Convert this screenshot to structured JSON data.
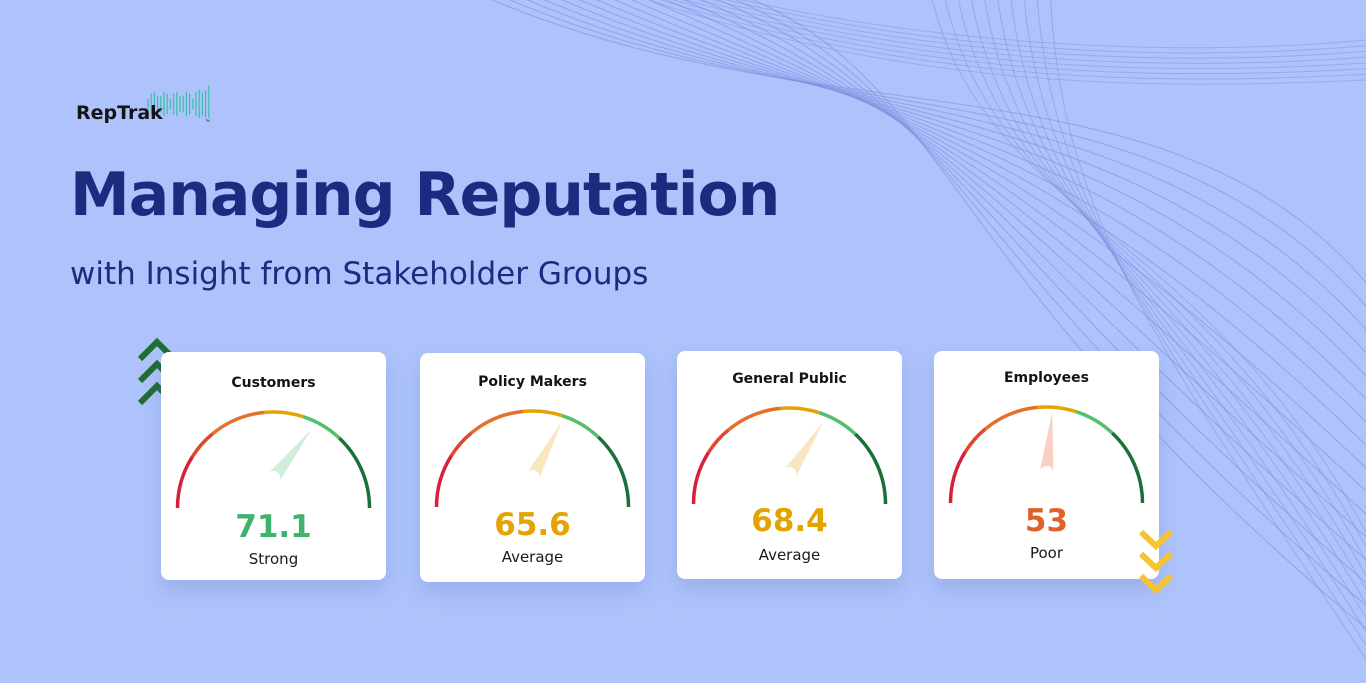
{
  "brand": {
    "name": "RepTrak",
    "tm": "™"
  },
  "headline": "Managing Reputation",
  "subheadline": "with Insight from Stakeholder Groups",
  "colors": {
    "background": "#aec3fb",
    "navy": "#1d2a80",
    "strong": "#3fb36e",
    "average": "#e3a400",
    "poor": "#e0602a",
    "up_chevron": "#1f6e36",
    "down_chevron": "#f6c431"
  },
  "stakeholders": [
    {
      "name": "Customers",
      "score": "71.1",
      "rating": "Strong",
      "score_value": 71.1
    },
    {
      "name": "Policy Makers",
      "score": "65.6",
      "rating": "Average",
      "score_value": 65.6
    },
    {
      "name": "General Public",
      "score": "68.4",
      "rating": "Average",
      "score_value": 68.4
    },
    {
      "name": "Employees",
      "score": "53",
      "rating": "Poor",
      "score_value": 53
    }
  ],
  "trend_icons": {
    "up": "triple-chevron-up-icon",
    "down": "triple-chevron-down-icon"
  }
}
